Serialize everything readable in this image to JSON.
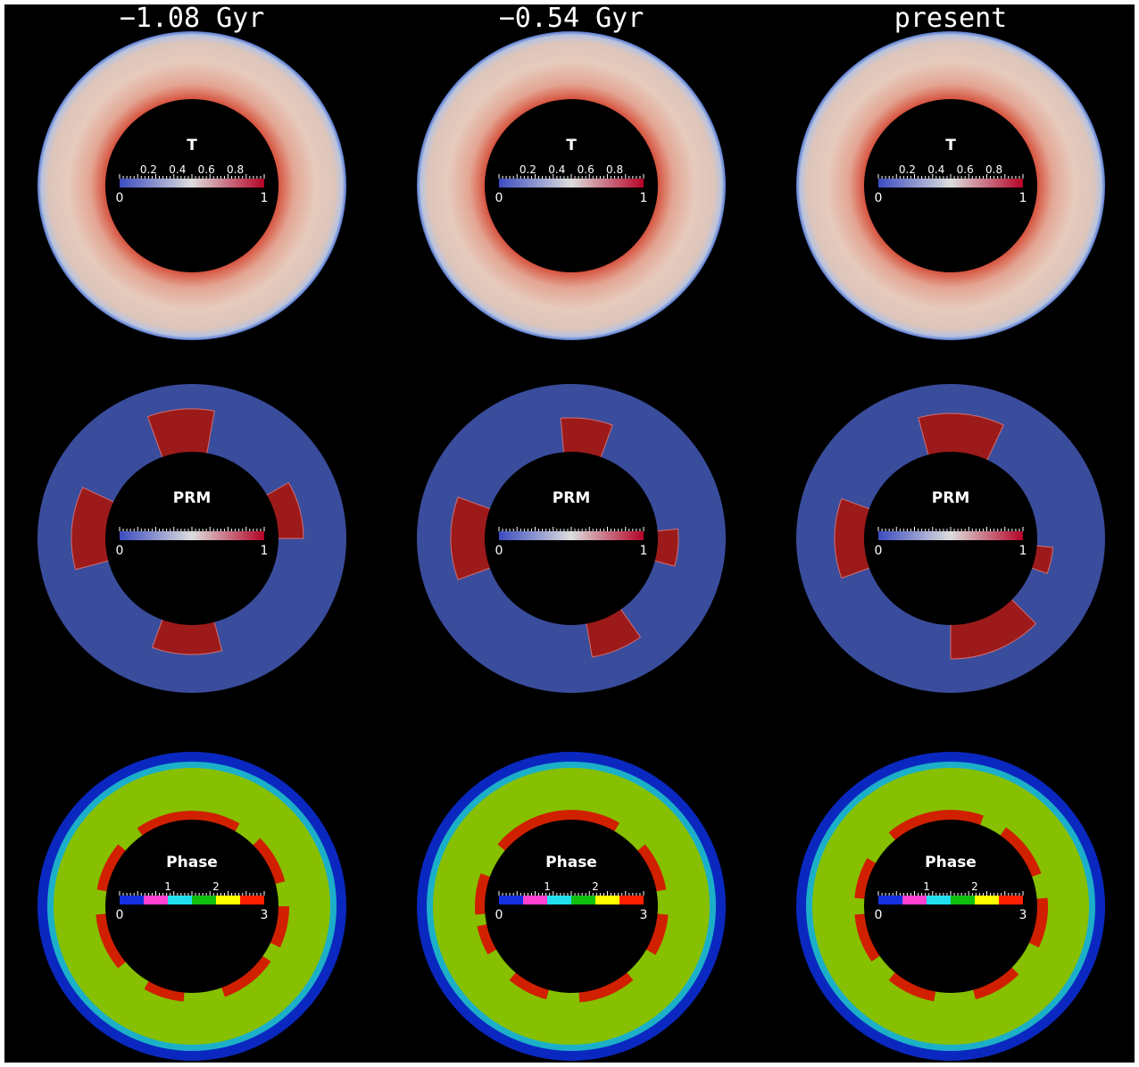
{
  "columns": [
    "−1.08 Gyr",
    "−0.54 Gyr",
    "present"
  ],
  "fields": [
    {
      "title": "T",
      "ticks": [
        "0.2",
        "0.4",
        "0.6",
        "0.8"
      ],
      "min": "0",
      "max": "1"
    },
    {
      "title": "PRM",
      "ticks": [],
      "min": "0",
      "max": "1"
    },
    {
      "title": "Phase",
      "ticks": [
        "1",
        "2"
      ],
      "min": "0",
      "max": "3"
    }
  ]
}
